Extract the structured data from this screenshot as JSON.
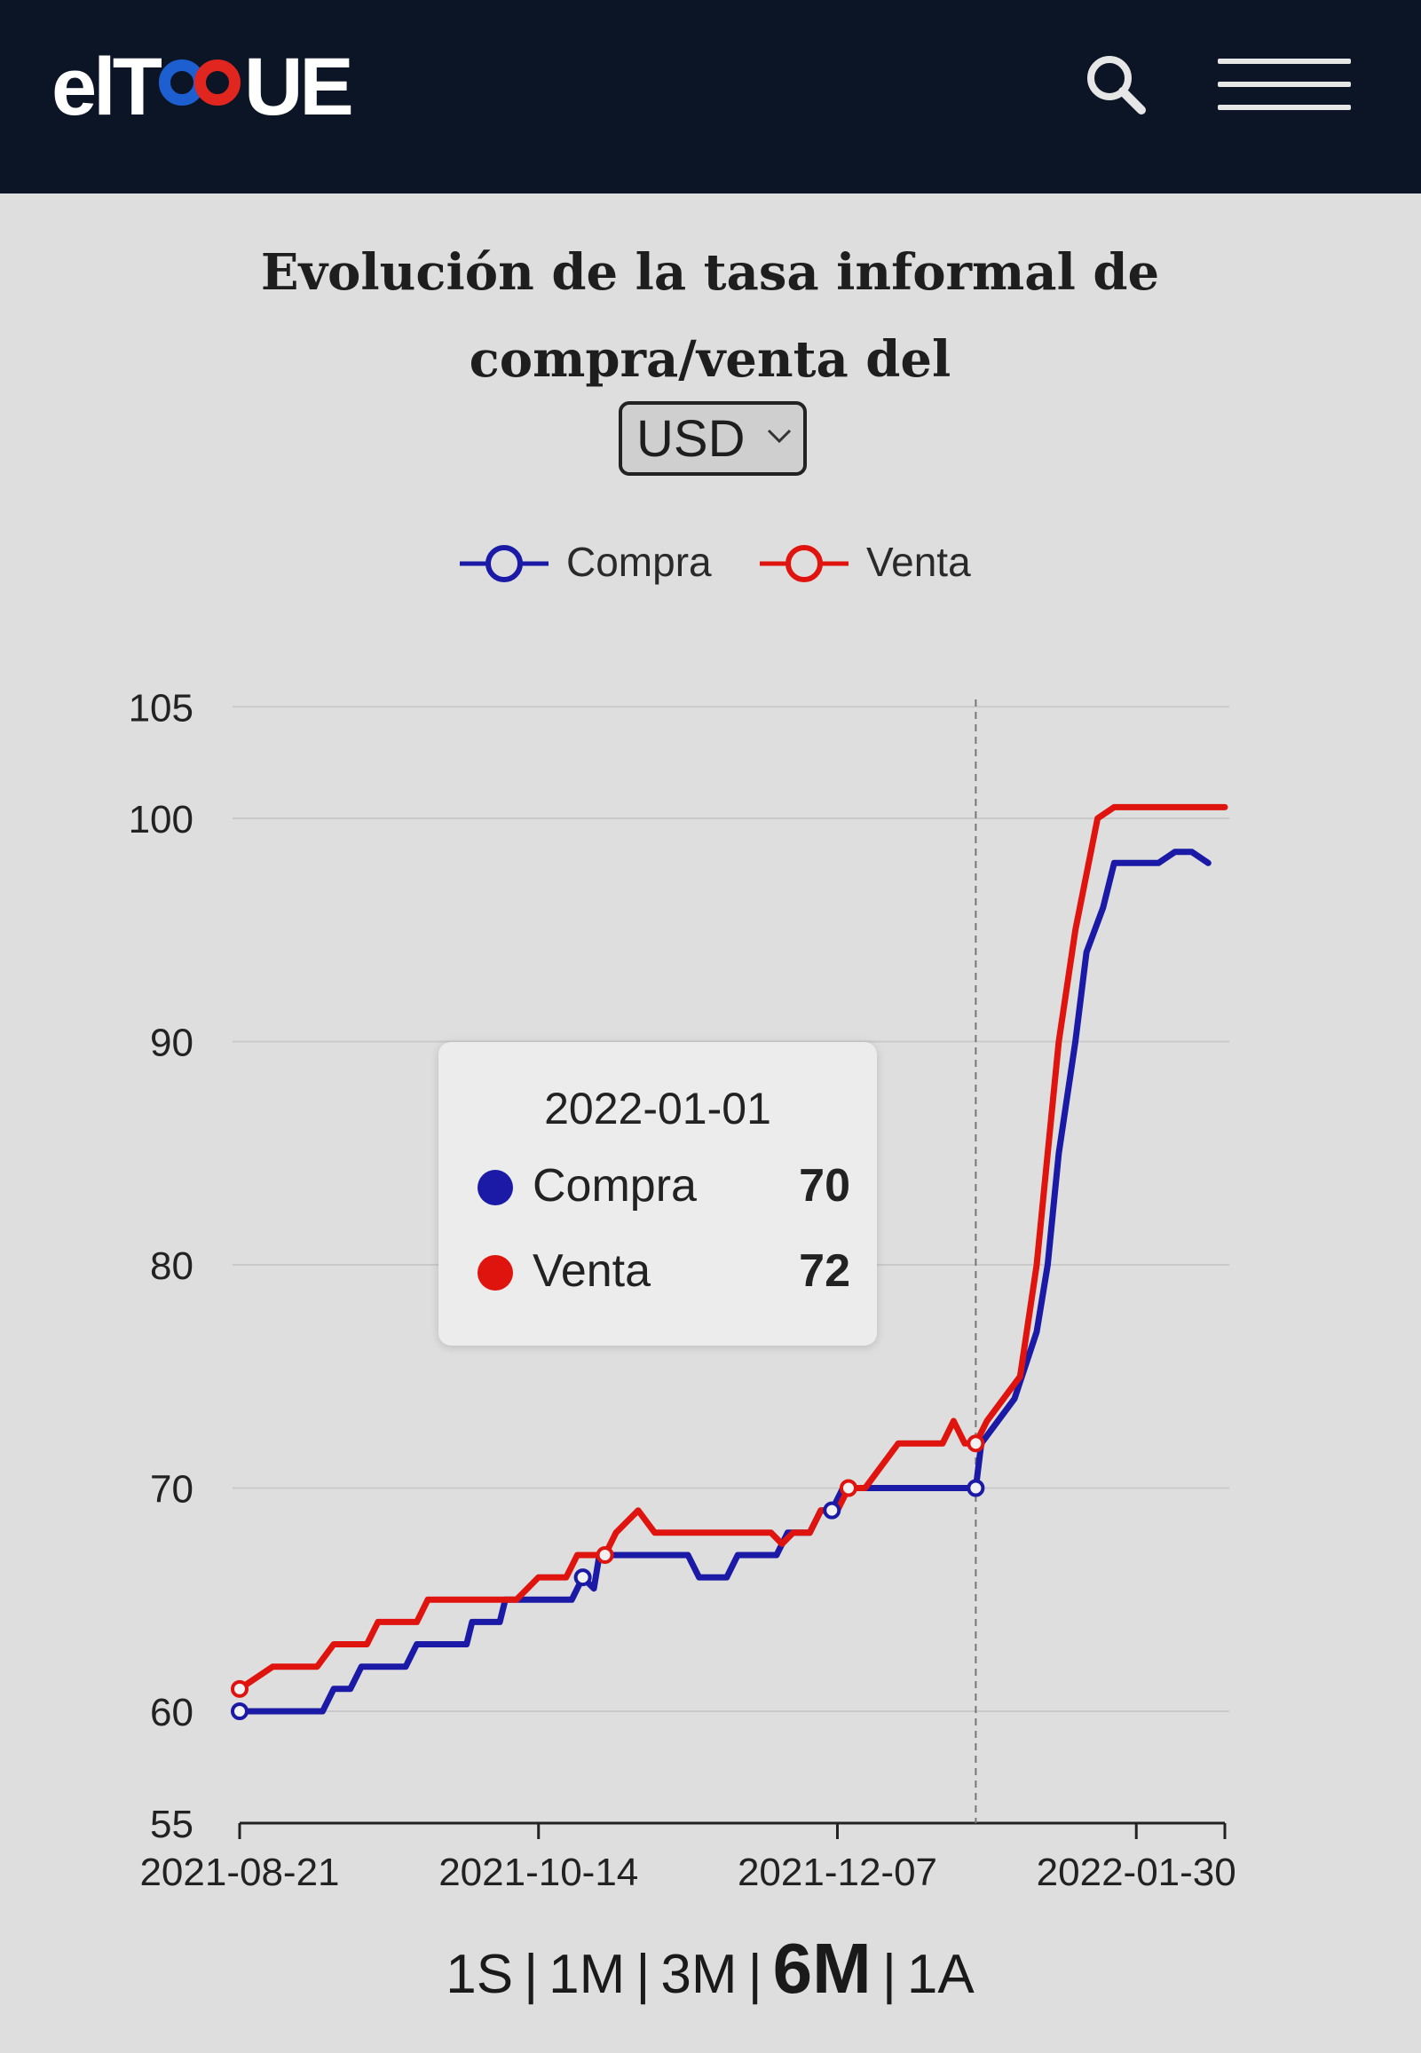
{
  "header": {
    "logo_text": "elTOQUE",
    "logo_prefix": "elT",
    "logo_suffix": "UE",
    "search_icon": "search-icon",
    "menu_icon": "hamburger-menu-icon"
  },
  "title": "Evolución de la tasa informal de compra/venta del",
  "currency": {
    "selected": "USD"
  },
  "ranges": {
    "options": [
      "1S",
      "1M",
      "3M",
      "6M",
      "1A"
    ],
    "active": "6M"
  },
  "tooltip": {
    "date": "2022-01-01",
    "rows": [
      {
        "name": "Compra",
        "value": "70"
      },
      {
        "name": "Venta",
        "value": "72"
      }
    ]
  },
  "colors": {
    "compra": "#1a1aa6",
    "venta": "#e0140e"
  },
  "chart_data": {
    "type": "line",
    "title": "Evolución de la tasa informal de compra/venta del USD",
    "xlabel": "",
    "ylabel": "",
    "ylim": [
      55,
      105
    ],
    "yticks": [
      55,
      60,
      70,
      80,
      90,
      100,
      105
    ],
    "xticks": [
      "2021-08-21",
      "2021-10-14",
      "2021-12-07",
      "2022-01-30"
    ],
    "xlim": [
      "2021-08-21",
      "2022-02-15"
    ],
    "grid": true,
    "legend": "top-center",
    "crosshair_date": "2022-01-01",
    "series": [
      {
        "name": "Compra",
        "color": "#1a1aa6",
        "points": [
          [
            "2021-08-21",
            60
          ],
          [
            "2021-09-05",
            60
          ],
          [
            "2021-09-07",
            61
          ],
          [
            "2021-09-10",
            61
          ],
          [
            "2021-09-12",
            62
          ],
          [
            "2021-09-20",
            62
          ],
          [
            "2021-09-22",
            63
          ],
          [
            "2021-10-01",
            63
          ],
          [
            "2021-10-02",
            64
          ],
          [
            "2021-10-07",
            64
          ],
          [
            "2021-10-08",
            65
          ],
          [
            "2021-10-14",
            65
          ],
          [
            "2021-10-20",
            65
          ],
          [
            "2021-10-22",
            66
          ],
          [
            "2021-10-24",
            65.5
          ],
          [
            "2021-10-25",
            67
          ],
          [
            "2021-11-10",
            67
          ],
          [
            "2021-11-12",
            66
          ],
          [
            "2021-11-17",
            66
          ],
          [
            "2021-11-19",
            67
          ],
          [
            "2021-11-26",
            67
          ],
          [
            "2021-11-28",
            68
          ],
          [
            "2021-12-02",
            68
          ],
          [
            "2021-12-04",
            69
          ],
          [
            "2021-12-06",
            69
          ],
          [
            "2021-12-08",
            70
          ],
          [
            "2021-12-23",
            70
          ],
          [
            "2021-12-30",
            70
          ],
          [
            "2022-01-01",
            70
          ],
          [
            "2022-01-02",
            72
          ],
          [
            "2022-01-05",
            73
          ],
          [
            "2022-01-08",
            74
          ],
          [
            "2022-01-12",
            77
          ],
          [
            "2022-01-14",
            80
          ],
          [
            "2022-01-16",
            85
          ],
          [
            "2022-01-19",
            90
          ],
          [
            "2022-01-21",
            94
          ],
          [
            "2022-01-24",
            96
          ],
          [
            "2022-01-26",
            98
          ],
          [
            "2022-01-29",
            98
          ],
          [
            "2022-02-03",
            98
          ],
          [
            "2022-02-06",
            98.5
          ],
          [
            "2022-02-09",
            98.5
          ],
          [
            "2022-02-12",
            98
          ]
        ]
      },
      {
        "name": "Venta",
        "color": "#e0140e",
        "points": [
          [
            "2021-08-21",
            61
          ],
          [
            "2021-08-27",
            62
          ],
          [
            "2021-09-04",
            62
          ],
          [
            "2021-09-07",
            63
          ],
          [
            "2021-09-13",
            63
          ],
          [
            "2021-09-15",
            64
          ],
          [
            "2021-09-22",
            64
          ],
          [
            "2021-09-24",
            65
          ],
          [
            "2021-10-10",
            65
          ],
          [
            "2021-10-14",
            66
          ],
          [
            "2021-10-19",
            66
          ],
          [
            "2021-10-21",
            67
          ],
          [
            "2021-10-26",
            67
          ],
          [
            "2021-10-28",
            68
          ],
          [
            "2021-11-01",
            69
          ],
          [
            "2021-11-04",
            68
          ],
          [
            "2021-11-25",
            68
          ],
          [
            "2021-11-27",
            67.5
          ],
          [
            "2021-11-29",
            68
          ],
          [
            "2021-12-02",
            68
          ],
          [
            "2021-12-04",
            69
          ],
          [
            "2021-12-07",
            69
          ],
          [
            "2021-12-09",
            70
          ],
          [
            "2021-12-12",
            70
          ],
          [
            "2021-12-15",
            71
          ],
          [
            "2021-12-18",
            72
          ],
          [
            "2021-12-26",
            72
          ],
          [
            "2021-12-28",
            73
          ],
          [
            "2021-12-30",
            72
          ],
          [
            "2022-01-01",
            72
          ],
          [
            "2022-01-03",
            73
          ],
          [
            "2022-01-06",
            74
          ],
          [
            "2022-01-09",
            75
          ],
          [
            "2022-01-12",
            80
          ],
          [
            "2022-01-14",
            85
          ],
          [
            "2022-01-16",
            90
          ],
          [
            "2022-01-19",
            95
          ],
          [
            "2022-01-23",
            100
          ],
          [
            "2022-01-26",
            100.5
          ],
          [
            "2022-02-15",
            100.5
          ]
        ]
      }
    ]
  }
}
